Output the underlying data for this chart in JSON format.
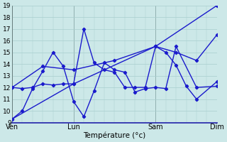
{
  "background_color": "#cce8e8",
  "grid_color": "#a8cece",
  "line_color": "#1a1acc",
  "marker": "D",
  "markersize": 2.2,
  "linewidth": 1.0,
  "xlabel": "Température (°c)",
  "xlabel_fontsize": 7.5,
  "ylim": [
    9,
    19
  ],
  "yticks": [
    9,
    10,
    11,
    12,
    13,
    14,
    15,
    16,
    17,
    18,
    19
  ],
  "ytick_fontsize": 6.5,
  "xtick_labels": [
    "Ven",
    "Lun",
    "Sam",
    "Dim"
  ],
  "xtick_positions": [
    0,
    3,
    7,
    10
  ],
  "xtick_fontsize": 7,
  "vline_positions": [
    0,
    3,
    7,
    10
  ],
  "xlim": [
    0,
    10
  ],
  "series": [
    {
      "x": [
        0.0,
        0.5,
        1.0,
        1.5,
        2.0,
        2.5,
        3.0,
        3.5,
        4.0,
        4.5,
        5.0,
        5.5,
        6.0,
        6.5,
        7.0,
        7.5,
        8.0,
        9.0,
        10.0
      ],
      "y": [
        9.3,
        10.0,
        11.9,
        13.4,
        15.0,
        13.8,
        10.8,
        9.5,
        11.7,
        14.1,
        13.5,
        13.3,
        11.6,
        11.9,
        12.0,
        11.9,
        15.5,
        12.0,
        12.1
      ]
    },
    {
      "x": [
        0.0,
        0.5,
        1.0,
        1.5,
        2.0,
        2.5,
        3.0,
        3.5,
        4.0,
        4.5,
        5.0,
        5.5,
        6.0,
        6.5,
        7.0,
        7.5,
        8.0,
        8.5,
        9.0,
        10.0
      ],
      "y": [
        12.0,
        11.9,
        12.0,
        12.3,
        12.2,
        12.3,
        12.3,
        17.0,
        14.1,
        13.5,
        13.3,
        12.0,
        12.0,
        12.0,
        15.5,
        15.0,
        13.9,
        12.1,
        11.0,
        12.5
      ]
    },
    {
      "x": [
        0.0,
        1.5,
        3.0,
        5.0,
        7.0,
        8.0,
        9.0,
        10.0
      ],
      "y": [
        12.0,
        13.8,
        13.5,
        14.3,
        15.5,
        15.0,
        14.3,
        16.5
      ]
    },
    {
      "x": [
        0.0,
        3.0,
        7.0,
        10.0
      ],
      "y": [
        9.3,
        12.3,
        15.5,
        19.0
      ]
    }
  ]
}
